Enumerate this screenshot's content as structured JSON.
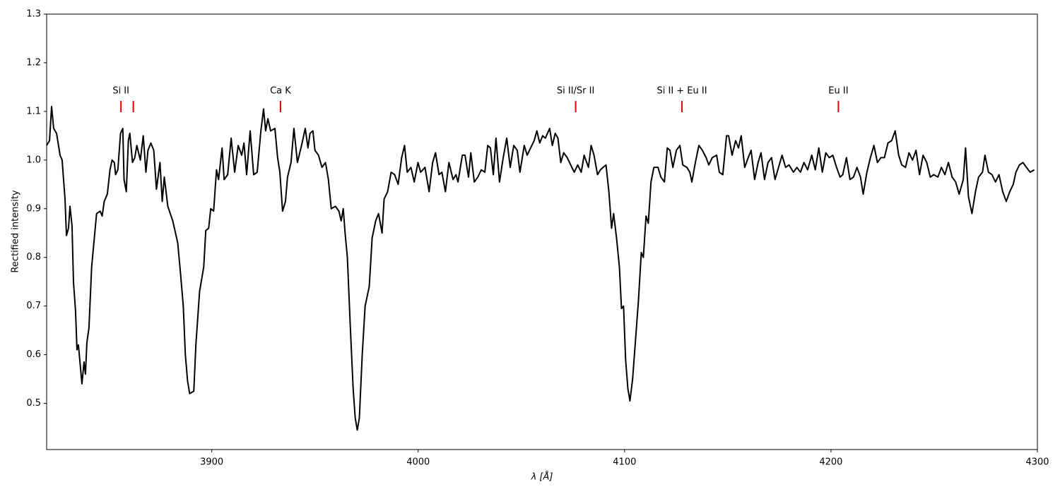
{
  "chart_data": {
    "type": "line",
    "xlabel": "λ [Å]",
    "ylabel": "Rectified intensity",
    "color": "#000000",
    "annotation_color": "#e00000",
    "xlim": [
      3820,
      4300
    ],
    "xticks": [
      3900,
      4000,
      4100,
      4200,
      4300
    ],
    "ylim": [
      0.405,
      1.3
    ],
    "yticks": [
      0.5,
      0.6,
      0.7,
      0.8,
      0.9,
      {
        "value": 1,
        "label": "1.0"
      },
      1.1,
      1.2,
      1.3
    ],
    "annotations": [
      {
        "label": "Si II",
        "x": [
          3856,
          3862
        ]
      },
      {
        "label": "Ca K",
        "x": [
          3933.3
        ]
      },
      {
        "label": "Si II/Sr II",
        "x": [
          4076.3
        ]
      },
      {
        "label": "Si II + Eu II",
        "x": [
          4127.8
        ]
      },
      {
        "label": "Eu II",
        "x": [
          4203.6
        ]
      }
    ],
    "x": [
      3820,
      3821.4,
      3822.4,
      3823.4,
      3824.8,
      3826.5,
      3827.5,
      3828.9,
      3829.6,
      3830.6,
      3831.3,
      3832.3,
      3833,
      3834,
      3834.7,
      3835.4,
      3837.1,
      3838.1,
      3838.8,
      3839.5,
      3840.5,
      3841.8,
      3844.2,
      3845.9,
      3846.9,
      3847.9,
      3849.4,
      3850.7,
      3851.7,
      3852.8,
      3853.4,
      3854.5,
      3855.8,
      3856.9,
      3857.5,
      3858.6,
      3859.6,
      3860.3,
      3861.6,
      3862.7,
      3863.7,
      3865.4,
      3866.8,
      3868.1,
      3869.1,
      3870.5,
      3871.9,
      3873.2,
      3874.9,
      3876,
      3877,
      3878.7,
      3881.1,
      3883.5,
      3884.8,
      3886.2,
      3887.2,
      3888.3,
      3889.3,
      3891.3,
      3892.3,
      3894.1,
      3896.1,
      3897.1,
      3898.5,
      3899.5,
      3900.9,
      3902.3,
      3903.3,
      3905,
      3906,
      3907.7,
      3909.4,
      3911.1,
      3912.8,
      3914.5,
      3915.6,
      3916.9,
      3918.6,
      3920.3,
      3922,
      3923.8,
      3925.1,
      3926.1,
      3927.2,
      3928.5,
      3930.6,
      3931.9,
      3933,
      3934.3,
      3935.7,
      3936.7,
      3938.4,
      3939.8,
      3941.5,
      3943.5,
      3945.3,
      3946.6,
      3947.6,
      3949,
      3950,
      3951.7,
      3953.4,
      3955.1,
      3956.5,
      3957.9,
      3959.9,
      3961.6,
      3962.7,
      3963.7,
      3964.7,
      3965.7,
      3967.1,
      3968.5,
      3969.5,
      3970.5,
      3971.5,
      3972.9,
      3974.3,
      3976.3,
      3977.7,
      3979.4,
      3980.8,
      3982.5,
      3983.5,
      3985.2,
      3986.9,
      3988.6,
      3990.3,
      3992,
      3993.4,
      3994.7,
      3996.5,
      3998.1,
      3999.9,
      4001.2,
      4003.3,
      4005.3,
      4007,
      4008.4,
      4010.1,
      4011.5,
      4013.2,
      4014.9,
      4016.9,
      4018.3,
      4019.3,
      4021.4,
      4022.7,
      4024.4,
      4025.5,
      4027.2,
      4028.9,
      4030.6,
      4032.3,
      4033.7,
      4035,
      4036.4,
      4037.7,
      4039.4,
      4041.2,
      4042.9,
      4044.6,
      4046.3,
      4048,
      4049.3,
      4051.4,
      4052.8,
      4054.5,
      4056.2,
      4057.5,
      4058.9,
      4060.3,
      4061.6,
      4063.7,
      4065,
      4066.4,
      4067.7,
      4069.1,
      4070.5,
      4072.2,
      4073.9,
      4075.6,
      4077.3,
      4079,
      4080.4,
      4082.5,
      4083.8,
      4085.2,
      4086.9,
      4088.3,
      4089.6,
      4091,
      4092.4,
      4093.7,
      4094.7,
      4096.1,
      4097.5,
      4098.5,
      4099.5,
      4100.5,
      4101.6,
      4102.6,
      4103.9,
      4105.3,
      4106.7,
      4108.1,
      4109.1,
      4110.4,
      4111.5,
      4112.8,
      4114.2,
      4116.2,
      4117.6,
      4119.3,
      4120.7,
      4122,
      4123.4,
      4125.1,
      4126.8,
      4128.2,
      4130.2,
      4131.6,
      4132.6,
      4134.3,
      4136,
      4137.7,
      4139.5,
      4140.8,
      4142.5,
      4144.6,
      4145.9,
      4147.6,
      4149.4,
      4150.4,
      4152.1,
      4153.8,
      4155.2,
      4156.5,
      4158.2,
      4159.9,
      4161.3,
      4163,
      4164.7,
      4166.1,
      4167.8,
      4169.5,
      4171.2,
      4172.9,
      4174.6,
      4176.3,
      4178,
      4179.7,
      4181.8,
      4183.5,
      4185.2,
      4186.9,
      4188.7,
      4190.7,
      4192.4,
      4194.1,
      4195.8,
      4197.5,
      4199.2,
      4200.9,
      4202.7,
      4204.4,
      4205.7,
      4207.5,
      4209.2,
      4210.9,
      4212.6,
      4214.3,
      4215.6,
      4217.4,
      4219.1,
      4220.8,
      4222.5,
      4224.2,
      4225.9,
      4227.6,
      4229.4,
      4231.1,
      4232.8,
      4234.3,
      4236.1,
      4237.8,
      4239.5,
      4241.2,
      4242.9,
      4244.6,
      4246.4,
      4248.1,
      4249.8,
      4251.8,
      4253.5,
      4255.2,
      4256.9,
      4258.7,
      4260.4,
      4262.1,
      4264.1,
      4265.2,
      4266.6,
      4268.3,
      4270,
      4271.5,
      4273.4,
      4274.6,
      4276.3,
      4278,
      4279.7,
      4281.4,
      4283.2,
      4284.9,
      4286.6,
      4288.3,
      4289.6,
      4291.3,
      4293,
      4294.7,
      4296.5,
      4298.5
    ],
    "values": [
      1.03,
      1.04,
      1.11,
      1.065,
      1.055,
      1.01,
      1,
      0.92,
      0.845,
      0.86,
      0.905,
      0.865,
      0.75,
      0.69,
      0.61,
      0.62,
      0.54,
      0.585,
      0.56,
      0.625,
      0.655,
      0.78,
      0.89,
      0.895,
      0.885,
      0.915,
      0.93,
      0.98,
      1,
      0.995,
      0.97,
      0.98,
      1.055,
      1.065,
      0.96,
      0.935,
      1.04,
      1.055,
      0.995,
      1.005,
      1.03,
      1,
      1.05,
      0.975,
      1.02,
      1.035,
      1.02,
      0.94,
      0.995,
      0.915,
      0.965,
      0.905,
      0.875,
      0.83,
      0.77,
      0.7,
      0.6,
      0.545,
      0.52,
      0.525,
      0.62,
      0.73,
      0.78,
      0.855,
      0.86,
      0.9,
      0.895,
      0.98,
      0.96,
      1.025,
      0.96,
      0.97,
      1.045,
      0.975,
      1.03,
      1.01,
      1.035,
      0.97,
      1.06,
      0.97,
      0.975,
      1.06,
      1.105,
      1.06,
      1.085,
      1.06,
      1.065,
      1.005,
      0.975,
      0.895,
      0.915,
      0.965,
      0.995,
      1.065,
      0.995,
      1.03,
      1.065,
      1.025,
      1.055,
      1.06,
      1.02,
      1.01,
      0.985,
      0.995,
      0.96,
      0.9,
      0.905,
      0.895,
      0.875,
      0.9,
      0.845,
      0.8,
      0.66,
      0.53,
      0.47,
      0.445,
      0.47,
      0.6,
      0.7,
      0.74,
      0.84,
      0.875,
      0.89,
      0.85,
      0.92,
      0.935,
      0.975,
      0.97,
      0.95,
      1.005,
      1.03,
      0.975,
      0.985,
      0.955,
      0.995,
      0.975,
      0.985,
      0.935,
      0.995,
      1.015,
      0.97,
      0.975,
      0.935,
      0.995,
      0.96,
      0.97,
      0.955,
      1.01,
      1.01,
      0.965,
      1.015,
      0.955,
      0.965,
      0.98,
      0.975,
      1.03,
      1.025,
      0.97,
      1.045,
      0.955,
      1.005,
      1.045,
      0.985,
      1.03,
      1.02,
      0.975,
      1.03,
      1.01,
      1.025,
      1.04,
      1.06,
      1.035,
      1.05,
      1.045,
      1.065,
      1.03,
      1.055,
      1.045,
      0.995,
      1.015,
      1.005,
      0.99,
      0.975,
      0.99,
      0.975,
      1.01,
      0.985,
      1.03,
      1.01,
      0.97,
      0.98,
      0.985,
      0.99,
      0.935,
      0.86,
      0.89,
      0.84,
      0.78,
      0.695,
      0.7,
      0.59,
      0.53,
      0.505,
      0.55,
      0.63,
      0.71,
      0.81,
      0.8,
      0.885,
      0.87,
      0.955,
      0.985,
      0.985,
      0.965,
      0.955,
      1.025,
      1.02,
      0.985,
      1.02,
      1.03,
      0.99,
      0.985,
      0.975,
      0.955,
      0.995,
      1.03,
      1.02,
      1.005,
      0.99,
      1.005,
      1.01,
      0.975,
      0.97,
      1.05,
      1.05,
      1.01,
      1.04,
      1.025,
      1.05,
      0.985,
      1.005,
      1.02,
      0.96,
      0.995,
      1.015,
      0.96,
      0.995,
      1.005,
      0.96,
      0.985,
      1.01,
      0.985,
      0.99,
      0.975,
      0.985,
      0.975,
      0.995,
      0.98,
      1.01,
      0.98,
      1.025,
      0.975,
      1.015,
      1.005,
      1.01,
      0.985,
      0.965,
      0.97,
      1.005,
      0.96,
      0.965,
      0.985,
      0.965,
      0.93,
      0.975,
      1.005,
      1.03,
      0.995,
      1.005,
      1.005,
      1.035,
      1.04,
      1.06,
      1.01,
      0.99,
      0.985,
      1.015,
      1,
      1.02,
      0.97,
      1.01,
      0.995,
      0.965,
      0.97,
      0.965,
      0.985,
      0.97,
      0.995,
      0.965,
      0.955,
      0.93,
      0.96,
      1.025,
      0.925,
      0.89,
      0.935,
      0.965,
      0.975,
      1.01,
      0.975,
      0.97,
      0.955,
      0.97,
      0.935,
      0.915,
      0.935,
      0.95,
      0.975,
      0.99,
      0.995,
      0.985,
      0.975,
      0.98
    ]
  }
}
